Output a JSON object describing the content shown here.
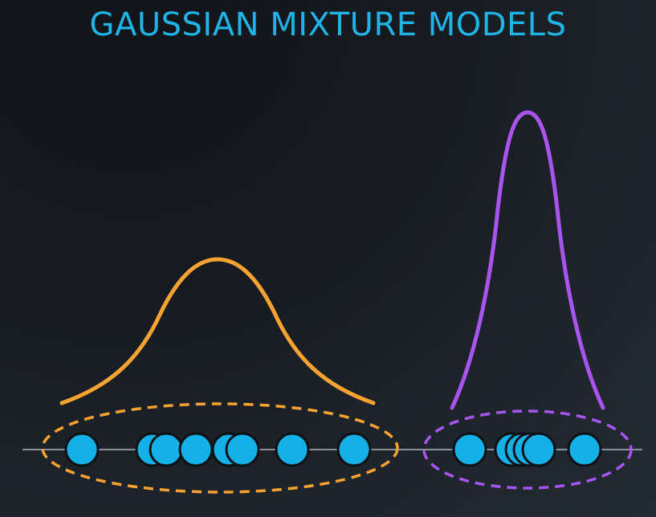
{
  "title": "GAUSSIAN MIXTURE MODELS",
  "colors": {
    "title": "#1fb3e6",
    "cluster_1": "#f7a231",
    "cluster_2": "#a855f0",
    "points": "#14b1e8",
    "point_outline": "#0e1114",
    "axis": "#8b9197"
  },
  "clusters": [
    {
      "color": "orange",
      "points": 8
    },
    {
      "color": "purple",
      "points": 6
    }
  ]
}
